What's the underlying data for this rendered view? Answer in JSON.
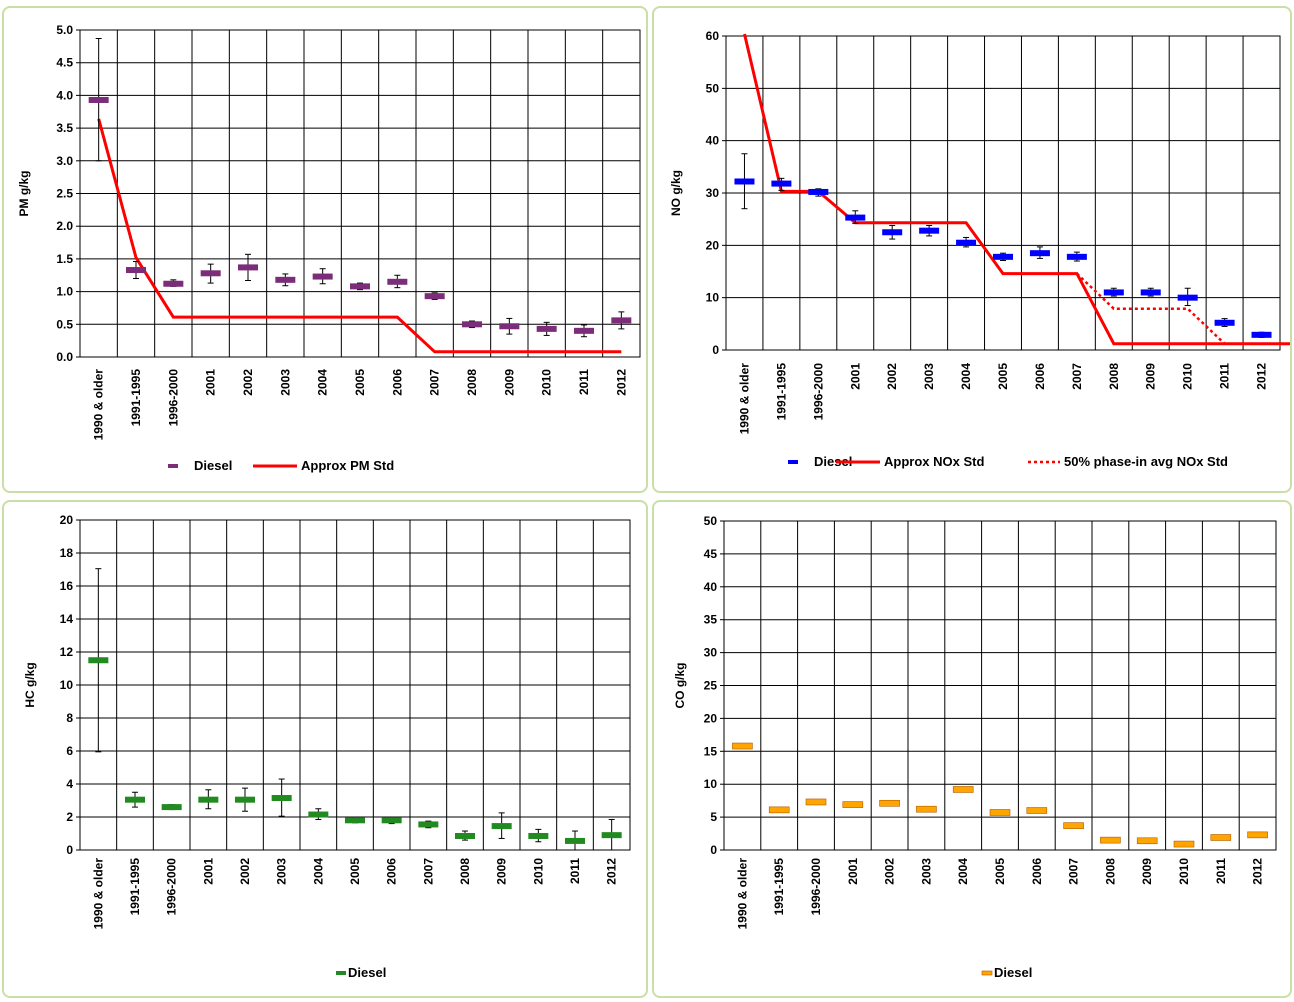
{
  "categories": [
    "1990 & older",
    "1991-1995",
    "1996-2000",
    "2001",
    "2002",
    "2003",
    "2004",
    "2005",
    "2006",
    "2007",
    "2008",
    "2009",
    "2010",
    "2011",
    "2012"
  ],
  "chart_data": [
    {
      "id": "pm",
      "type": "scatter",
      "ylabel": "PM g/kg",
      "ylim": [
        0,
        5
      ],
      "ystep": 0.5,
      "yticks": [
        "0.0",
        "0.5",
        "1.0",
        "1.5",
        "2.0",
        "2.5",
        "3.0",
        "3.5",
        "4.0",
        "4.5",
        "5.0"
      ],
      "series": [
        {
          "name": "Diesel",
          "kind": "marker",
          "color": "#7b2d79",
          "values": [
            3.93,
            1.33,
            1.12,
            1.28,
            1.37,
            1.18,
            1.23,
            1.08,
            1.15,
            0.93,
            0.5,
            0.47,
            0.43,
            0.4,
            0.56
          ],
          "err_low": [
            3.0,
            1.2,
            1.08,
            1.13,
            1.17,
            1.09,
            1.12,
            1.03,
            1.06,
            0.88,
            0.45,
            0.35,
            0.33,
            0.31,
            0.43
          ],
          "err_high": [
            4.87,
            1.46,
            1.18,
            1.42,
            1.57,
            1.27,
            1.35,
            1.13,
            1.25,
            0.98,
            0.55,
            0.59,
            0.53,
            0.49,
            0.69
          ]
        },
        {
          "name": "Approx PM Std",
          "kind": "line",
          "color": "#ff0000",
          "dash": "",
          "points": [
            [
              0,
              3.64
            ],
            [
              1,
              1.52
            ],
            [
              2,
              0.61
            ],
            [
              8,
              0.61
            ],
            [
              9,
              0.08
            ],
            [
              14,
              0.08
            ]
          ]
        }
      ],
      "legend_position": "bottom"
    },
    {
      "id": "no",
      "type": "scatter",
      "ylabel": "NO g/kg",
      "ylim": [
        0,
        60
      ],
      "ystep": 10,
      "yticks": [
        "0",
        "10",
        "20",
        "30",
        "40",
        "50",
        "60"
      ],
      "series": [
        {
          "name": "Diesel",
          "kind": "marker",
          "color": "#0000ff",
          "values": [
            32.2,
            31.8,
            30.2,
            25.3,
            22.5,
            22.8,
            20.5,
            17.8,
            18.5,
            17.8,
            11.0,
            11.0,
            10.0,
            5.2,
            2.9
          ],
          "err_low": [
            27.0,
            30.5,
            29.4,
            24.2,
            21.2,
            21.8,
            19.7,
            17.1,
            17.5,
            17.0,
            10.3,
            10.3,
            8.5,
            4.5,
            2.4
          ],
          "err_high": [
            37.5,
            32.8,
            30.8,
            26.6,
            23.8,
            23.8,
            21.5,
            18.5,
            19.7,
            18.7,
            11.8,
            11.8,
            11.8,
            6.0,
            3.4
          ]
        },
        {
          "name": "Approx NOx Std",
          "kind": "line",
          "color": "#ff0000",
          "dash": "",
          "points": [
            [
              0,
              61
            ],
            [
              1,
              30.3
            ],
            [
              2,
              30.3
            ],
            [
              3,
              24.3
            ],
            [
              6,
              24.3
            ],
            [
              7,
              14.6
            ],
            [
              9,
              14.6
            ],
            [
              10,
              1.2
            ],
            [
              15,
              1.2
            ]
          ]
        },
        {
          "name": "50% phase-in avg NOx Std",
          "kind": "line",
          "color": "#ff0000",
          "dash": "3,3",
          "points": [
            [
              9,
              14.6
            ],
            [
              10,
              7.9
            ],
            [
              12,
              7.9
            ],
            [
              13,
              1.2
            ]
          ]
        }
      ],
      "legend_position": "bottom"
    },
    {
      "id": "hc",
      "type": "scatter",
      "ylabel": "HC g/kg",
      "ylim": [
        0,
        20
      ],
      "ystep": 2,
      "yticks": [
        "0",
        "2",
        "4",
        "6",
        "8",
        "10",
        "12",
        "14",
        "16",
        "18",
        "20"
      ],
      "series": [
        {
          "name": "Diesel",
          "kind": "marker",
          "color": "#218a21",
          "values": [
            11.5,
            3.05,
            2.6,
            3.05,
            3.05,
            3.15,
            2.15,
            1.8,
            1.8,
            1.55,
            0.85,
            1.45,
            0.85,
            0.55,
            0.9
          ],
          "err_low": [
            5.95,
            2.6,
            2.45,
            2.5,
            2.35,
            2.05,
            1.85,
            1.65,
            1.6,
            1.35,
            0.6,
            0.7,
            0.5,
            0.0,
            0.0
          ],
          "err_high": [
            17.05,
            3.5,
            2.75,
            3.65,
            3.75,
            4.3,
            2.5,
            1.95,
            2.0,
            1.75,
            1.15,
            2.25,
            1.25,
            1.15,
            1.85
          ]
        }
      ],
      "legend_position": "bottom"
    },
    {
      "id": "co",
      "type": "scatter",
      "ylabel": "CO g/kg",
      "ylim": [
        0,
        50
      ],
      "ystep": 5,
      "yticks": [
        "0",
        "5",
        "10",
        "15",
        "20",
        "25",
        "30",
        "35",
        "40",
        "45",
        "50"
      ],
      "series": [
        {
          "name": "Diesel",
          "kind": "marker",
          "color": "#ffa500",
          "values": [
            15.8,
            6.1,
            7.3,
            6.9,
            7.1,
            6.2,
            9.2,
            5.7,
            6.0,
            3.7,
            1.5,
            1.4,
            0.9,
            1.9,
            2.3
          ]
        }
      ],
      "legend_position": "bottom"
    }
  ]
}
